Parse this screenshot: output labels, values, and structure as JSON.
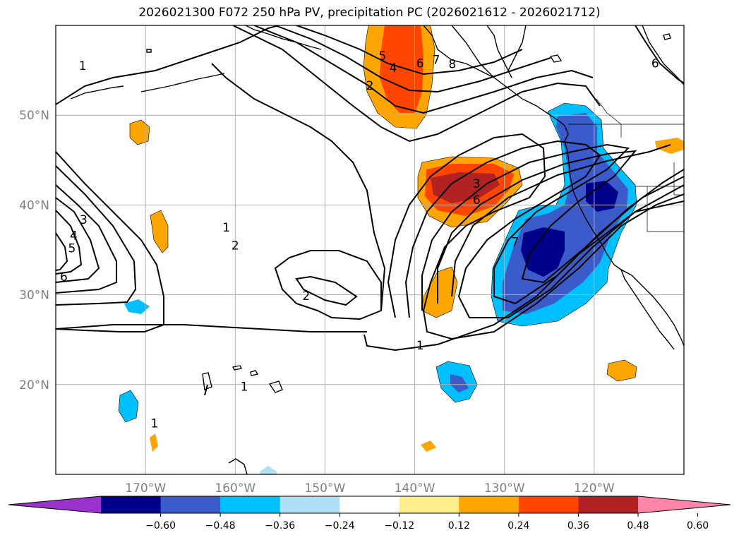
{
  "title": "2026021300 F072 250 hPa PV, precipitation PC (2026021612 - 2026021712)",
  "map": {
    "projection": "PlateCarree",
    "lon_range": [
      -180,
      -110
    ],
    "lat_range": [
      10,
      60
    ],
    "grid": true,
    "lon_ticks": [
      {
        "lon": -170,
        "label": "170°W"
      },
      {
        "lon": -160,
        "label": "160°W"
      },
      {
        "lon": -150,
        "label": "150°W"
      },
      {
        "lon": -140,
        "label": "140°W"
      },
      {
        "lon": -130,
        "label": "130°W"
      },
      {
        "lon": -120,
        "label": "120°W"
      }
    ],
    "lat_ticks": [
      {
        "lat": 50,
        "label": "50°N"
      },
      {
        "lat": 40,
        "label": "40°N"
      },
      {
        "lat": 30,
        "label": "30°N"
      },
      {
        "lat": 20,
        "label": "20°N"
      }
    ],
    "pv_contour_labels": [
      {
        "text": "1",
        "lon": -177,
        "lat": 55.5
      },
      {
        "text": "1",
        "lon": -169,
        "lat": 15.7
      },
      {
        "text": "1",
        "lon": -159,
        "lat": 19.8
      },
      {
        "text": "1",
        "lon": -139.4,
        "lat": 24.4
      },
      {
        "text": "1",
        "lon": -161,
        "lat": 37.5
      },
      {
        "text": "2",
        "lon": -160,
        "lat": 35.5
      },
      {
        "text": "2",
        "lon": -145,
        "lat": 53.3
      },
      {
        "text": "2",
        "lon": -152.1,
        "lat": 29.9
      },
      {
        "text": "3",
        "lon": -176.9,
        "lat": 38.4
      },
      {
        "text": "3",
        "lon": -133.1,
        "lat": 42.4
      },
      {
        "text": "4",
        "lon": -178,
        "lat": 36.6
      },
      {
        "text": "4",
        "lon": -142.4,
        "lat": 55.3
      },
      {
        "text": "5",
        "lon": -178.2,
        "lat": 35.2
      },
      {
        "text": "5",
        "lon": -143.6,
        "lat": 56.6
      },
      {
        "text": "6",
        "lon": -179.1,
        "lat": 32.0
      },
      {
        "text": "6",
        "lon": -139.4,
        "lat": 55.8
      },
      {
        "text": "6",
        "lon": -133.1,
        "lat": 40.6
      },
      {
        "text": "6",
        "lon": -113.2,
        "lat": 55.8
      },
      {
        "text": "7",
        "lon": -137.6,
        "lat": 56.2
      },
      {
        "text": "7",
        "lon": -128.8,
        "lat": 35.9
      },
      {
        "text": "8",
        "lon": -135.8,
        "lat": 55.7
      }
    ]
  },
  "colorbar": {
    "levels": [
      -0.6,
      -0.48,
      -0.36,
      -0.24,
      -0.12,
      0.12,
      0.24,
      0.36,
      0.48,
      0.6
    ],
    "labels": [
      "−0.60",
      "−0.48",
      "−0.36",
      "−0.24",
      "−0.12",
      "0.12",
      "0.24",
      "0.36",
      "0.48",
      "0.60"
    ],
    "colors": [
      "#9932cc",
      "#00008b",
      "#3a5bc9",
      "#00bfff",
      "#b0e0f8",
      "#ffffff",
      "#ffec8b",
      "#ffa500",
      "#ff4500",
      "#b22222",
      "#ff85a8"
    ],
    "extend": "both"
  }
}
